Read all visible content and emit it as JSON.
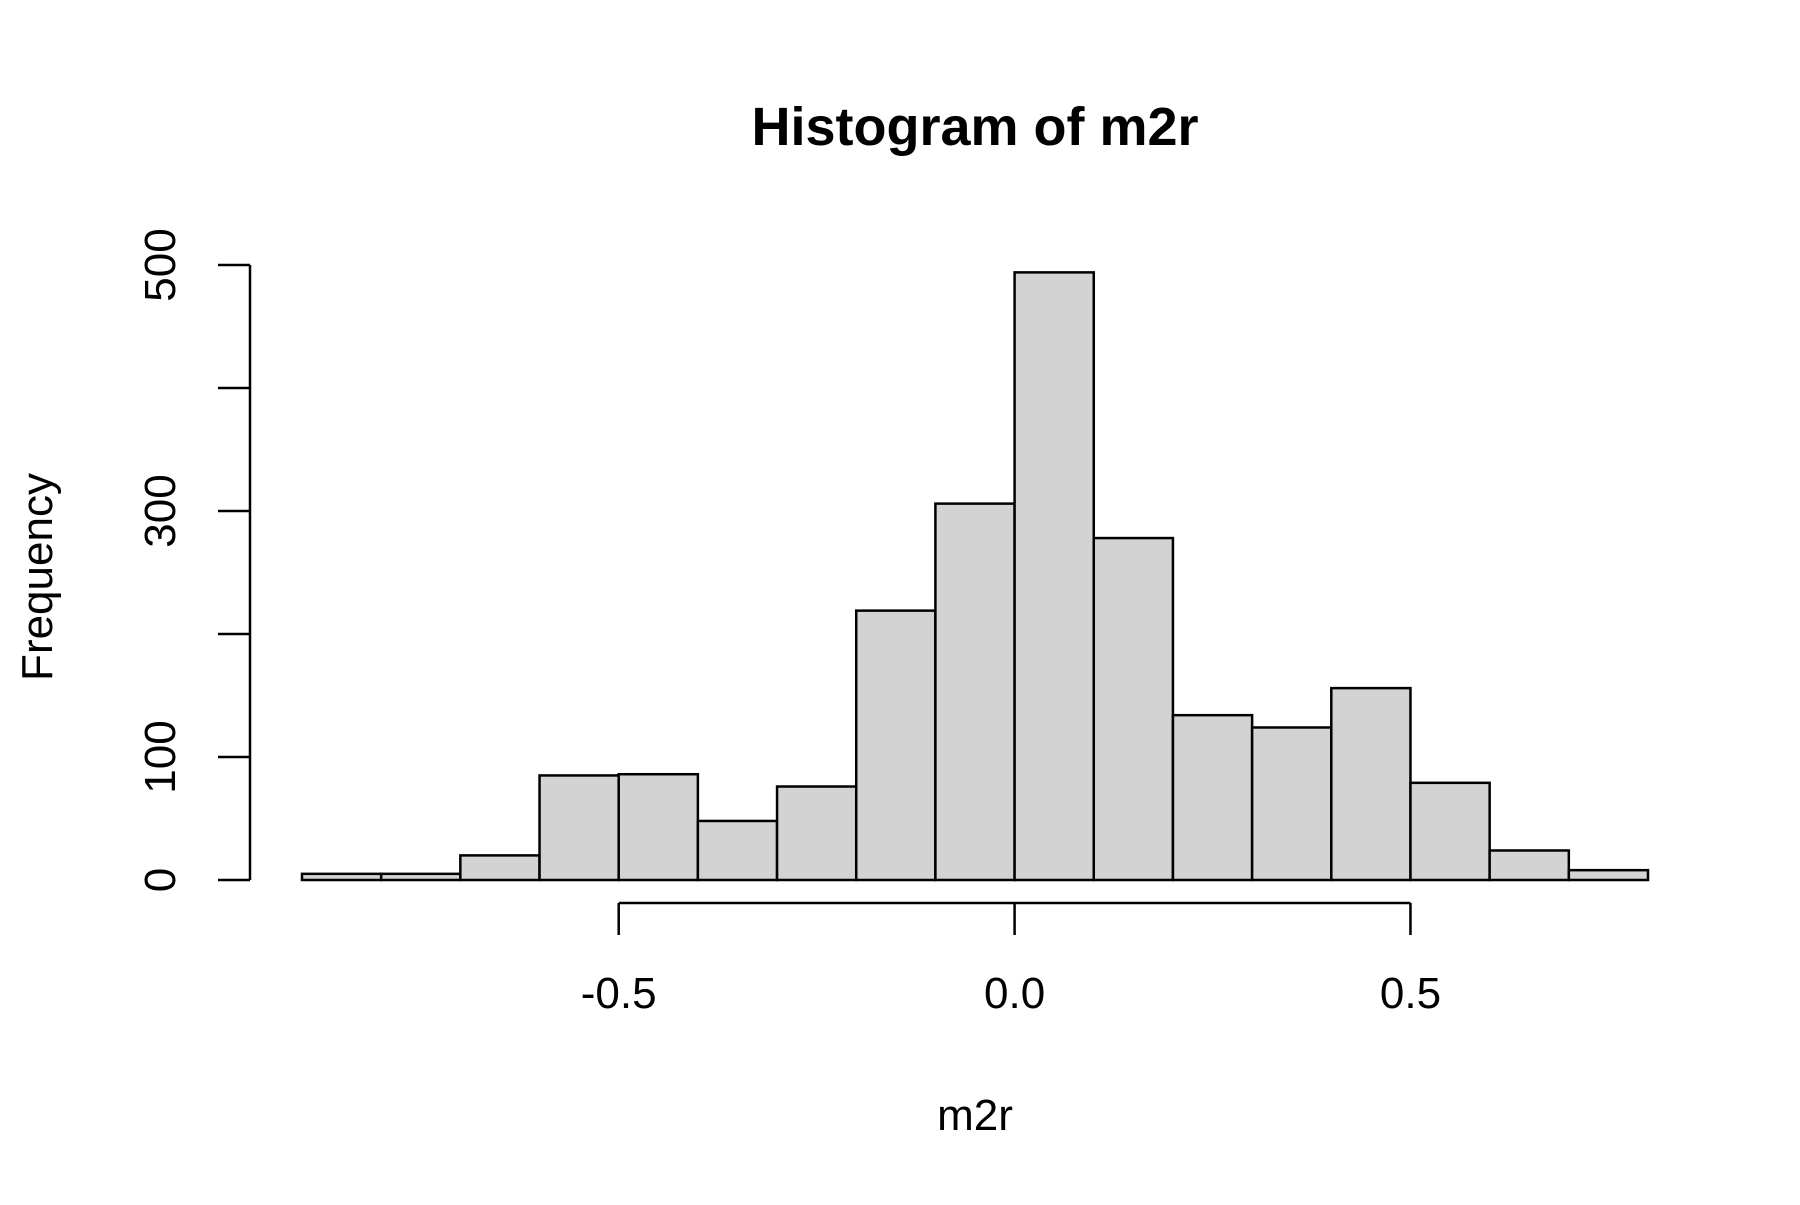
{
  "chart_data": {
    "type": "bar",
    "histogram": true,
    "title": "Histogram of m2r",
    "xlabel": "m2r",
    "ylabel": "Frequency",
    "bin_edges": [
      -0.9,
      -0.8,
      -0.7,
      -0.6,
      -0.5,
      -0.4,
      -0.3,
      -0.2,
      -0.1,
      0.0,
      0.1,
      0.2,
      0.3,
      0.4,
      0.5,
      0.6,
      0.7,
      0.8
    ],
    "values": [
      5,
      5,
      20,
      85,
      86,
      48,
      76,
      219,
      306,
      494,
      278,
      134,
      124,
      156,
      79,
      24,
      8
    ],
    "xlim": [
      -0.9,
      0.8
    ],
    "ylim": [
      0,
      500
    ],
    "x_ticks": [
      -0.5,
      0.0,
      0.5
    ],
    "x_tick_labels": [
      "-0.5",
      "0.0",
      "0.5"
    ],
    "y_ticks": [
      0,
      100,
      200,
      300,
      400,
      500
    ],
    "y_tick_labels": [
      "0",
      "100",
      "",
      "300",
      "",
      "500"
    ],
    "bar_fill": "#d3d3d3",
    "bar_stroke": "#000000",
    "grid": false,
    "legend": "none"
  }
}
